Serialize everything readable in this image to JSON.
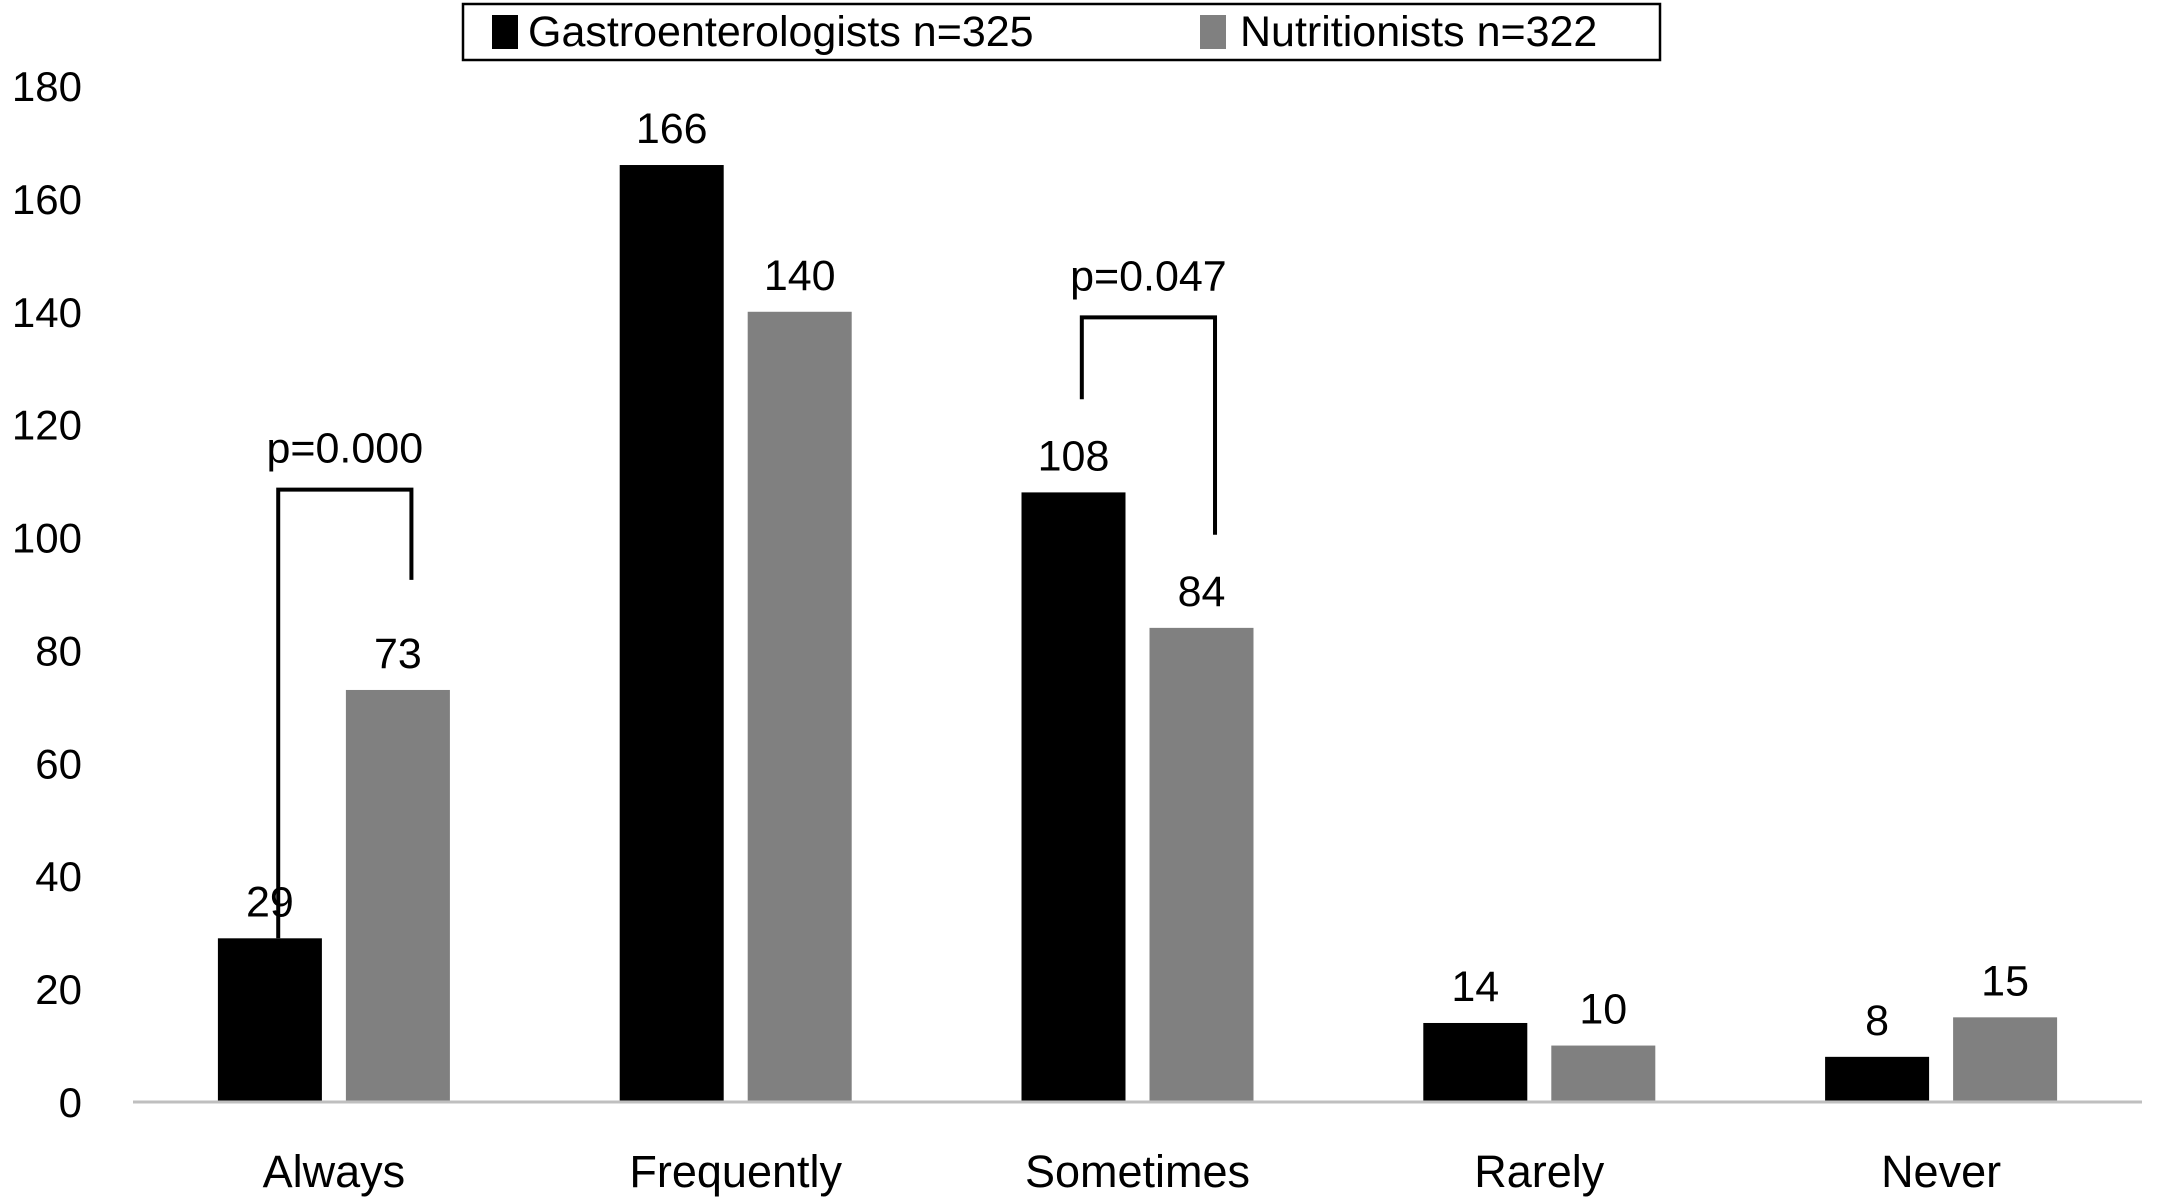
{
  "chart_data": {
    "type": "bar",
    "categories": [
      "Always",
      "Frequently",
      "Sometimes",
      "Rarely",
      "Never"
    ],
    "series": [
      {
        "name": "Gastroenterologists n=325",
        "values": [
          29,
          166,
          108,
          14,
          8
        ],
        "color": "#000000"
      },
      {
        "name": "Nutritionists n=322",
        "values": [
          73,
          140,
          84,
          10,
          15
        ],
        "color": "#808080"
      }
    ],
    "ylim": [
      0,
      180
    ],
    "yticks": [
      0,
      20,
      40,
      60,
      80,
      100,
      120,
      140,
      160,
      180
    ],
    "grid": false,
    "legend": "top-center",
    "annotations": [
      {
        "text": "p=0.000",
        "category": "Always",
        "bracket_start_value": 29,
        "bracket_top_value": 108.5,
        "bracket_end_value": 92.5
      },
      {
        "text": "p=0.047",
        "category": "Sometimes",
        "bracket_start_value": 124.5,
        "bracket_top_value": 139,
        "bracket_end_value": 100.5
      }
    ],
    "axis_color": "#bfbfbf"
  }
}
